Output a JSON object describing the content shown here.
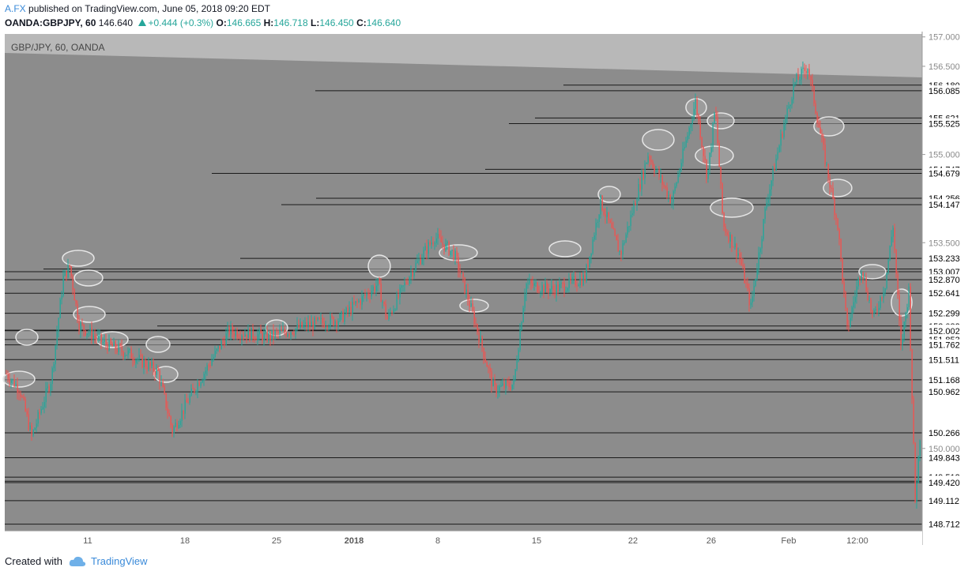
{
  "header": {
    "author": "A.FX",
    "published_text": "published on TradingView.com, June 05, 2018 09:20 EDT",
    "symbol": "OANDA:GBPJPY, 60",
    "last": "146.640",
    "change": "+0.444 (+0.3%)",
    "open_label": "O:",
    "open": "146.665",
    "high_label": "H:",
    "high": "146.718",
    "low_label": "L:",
    "low": "146.450",
    "close_label": "C:",
    "close": "146.640"
  },
  "footer": {
    "created_with": "Created with",
    "brand": "TradingView"
  },
  "colors": {
    "up": "#26a69a",
    "down": "#ef5350",
    "background": "#8c8c8c",
    "candle_up": "#26a69a",
    "candle_down": "#ef5350",
    "line": "#1a1a1a"
  },
  "chart_data": {
    "type": "line",
    "title": "GBP/JPY, 60, OANDA",
    "ylim": [
      148.6,
      157.05
    ],
    "y_ticks": [
      "157.000",
      "156.500",
      "155.000",
      "153.500",
      "150.000"
    ],
    "x_ticks": [
      "11",
      "18",
      "25",
      "2018",
      "8",
      "15",
      "22",
      "26",
      "Feb",
      "12:00"
    ],
    "horizontal_levels": [
      156.18,
      156.085,
      155.621,
      155.525,
      154.747,
      154.679,
      154.256,
      154.147,
      153.233,
      153.052,
      153.007,
      152.87,
      152.641,
      152.299,
      152.082,
      152.013,
      152.002,
      151.853,
      151.762,
      151.511,
      151.168,
      150.962,
      150.266,
      149.843,
      149.512,
      149.443,
      149.42,
      149.112,
      148.712
    ],
    "level_labels": [
      "156.180",
      "156.085",
      "155.621",
      "155.525",
      "154.747",
      "154.679",
      "154.256",
      "154.147",
      "153.233",
      "153.052",
      "153.007",
      "152.870",
      "152.641",
      "152.299",
      "152.082",
      "152.013",
      "152.002",
      "151.853",
      "151.762",
      "151.511",
      "151.168",
      "150.962",
      "150.266",
      "149.843",
      "149.512",
      "149.443",
      "149.420",
      "149.112",
      "148.712"
    ],
    "price_series": [
      {
        "x": 0,
        "y": 151.4
      },
      {
        "x": 25,
        "y": 151.0
      },
      {
        "x": 40,
        "y": 150.2
      },
      {
        "x": 65,
        "y": 151.2
      },
      {
        "x": 80,
        "y": 152.9
      },
      {
        "x": 88,
        "y": 153.1
      },
      {
        "x": 100,
        "y": 152.1
      },
      {
        "x": 130,
        "y": 151.8
      },
      {
        "x": 165,
        "y": 151.6
      },
      {
        "x": 200,
        "y": 151.3
      },
      {
        "x": 218,
        "y": 150.3
      },
      {
        "x": 245,
        "y": 151.0
      },
      {
        "x": 290,
        "y": 152.0
      },
      {
        "x": 340,
        "y": 151.9
      },
      {
        "x": 390,
        "y": 152.1
      },
      {
        "x": 430,
        "y": 152.2
      },
      {
        "x": 478,
        "y": 152.8
      },
      {
        "x": 490,
        "y": 152.2
      },
      {
        "x": 520,
        "y": 153.0
      },
      {
        "x": 550,
        "y": 153.6
      },
      {
        "x": 575,
        "y": 153.3
      },
      {
        "x": 600,
        "y": 152.2
      },
      {
        "x": 625,
        "y": 151.0
      },
      {
        "x": 650,
        "y": 151.1
      },
      {
        "x": 665,
        "y": 152.8
      },
      {
        "x": 700,
        "y": 152.7
      },
      {
        "x": 740,
        "y": 152.9
      },
      {
        "x": 760,
        "y": 154.2
      },
      {
        "x": 785,
        "y": 153.3
      },
      {
        "x": 820,
        "y": 155.0
      },
      {
        "x": 850,
        "y": 154.2
      },
      {
        "x": 880,
        "y": 155.9
      },
      {
        "x": 895,
        "y": 154.6
      },
      {
        "x": 905,
        "y": 155.8
      },
      {
        "x": 915,
        "y": 153.8
      },
      {
        "x": 935,
        "y": 153.3
      },
      {
        "x": 950,
        "y": 152.4
      },
      {
        "x": 970,
        "y": 154.2
      },
      {
        "x": 990,
        "y": 155.4
      },
      {
        "x": 1005,
        "y": 156.2
      },
      {
        "x": 1022,
        "y": 156.5
      },
      {
        "x": 1040,
        "y": 155.2
      },
      {
        "x": 1060,
        "y": 153.8
      },
      {
        "x": 1072,
        "y": 152.0
      },
      {
        "x": 1090,
        "y": 153.1
      },
      {
        "x": 1105,
        "y": 152.2
      },
      {
        "x": 1120,
        "y": 152.8
      },
      {
        "x": 1130,
        "y": 153.8
      },
      {
        "x": 1140,
        "y": 151.7
      },
      {
        "x": 1150,
        "y": 152.7
      },
      {
        "x": 1158,
        "y": 149.1
      },
      {
        "x": 1165,
        "y": 150.4
      }
    ]
  }
}
